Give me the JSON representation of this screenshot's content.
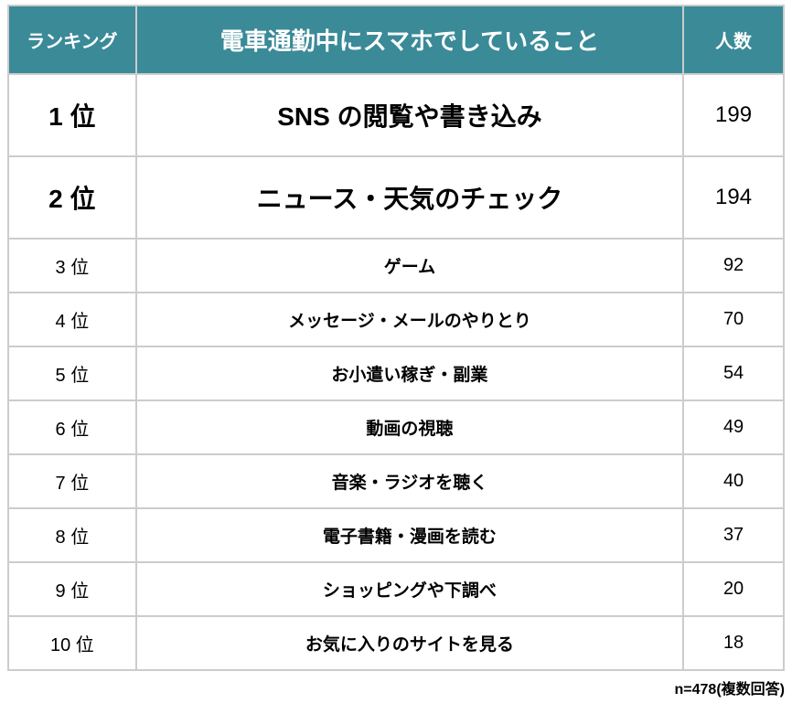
{
  "table": {
    "header_bg_color": "#3a8a98",
    "header_text_color": "#ffffff",
    "border_color": "#cccccc",
    "columns": {
      "rank": "ランキング",
      "activity": "電車通勤中にスマホでしていること",
      "count": "人数"
    },
    "rows": [
      {
        "rank": "1 位",
        "activity": "SNS の閲覧や書き込み",
        "count": "199",
        "emphasis": "big"
      },
      {
        "rank": "2 位",
        "activity": "ニュース・天気のチェック",
        "count": "194",
        "emphasis": "big"
      },
      {
        "rank": "3 位",
        "activity": "ゲーム",
        "count": "92",
        "emphasis": "small"
      },
      {
        "rank": "4 位",
        "activity": "メッセージ・メールのやりとり",
        "count": "70",
        "emphasis": "small"
      },
      {
        "rank": "5 位",
        "activity": "お小遣い稼ぎ・副業",
        "count": "54",
        "emphasis": "small"
      },
      {
        "rank": "6 位",
        "activity": "動画の視聴",
        "count": "49",
        "emphasis": "small"
      },
      {
        "rank": "7 位",
        "activity": "音楽・ラジオを聴く",
        "count": "40",
        "emphasis": "small"
      },
      {
        "rank": "8 位",
        "activity": "電子書籍・漫画を読む",
        "count": "37",
        "emphasis": "small"
      },
      {
        "rank": "9 位",
        "activity": "ショッピングや下調べ",
        "count": "20",
        "emphasis": "small"
      },
      {
        "rank": "10 位",
        "activity": "お気に入りのサイトを見る",
        "count": "18",
        "emphasis": "small"
      }
    ]
  },
  "footnote": "n=478(複数回答)"
}
